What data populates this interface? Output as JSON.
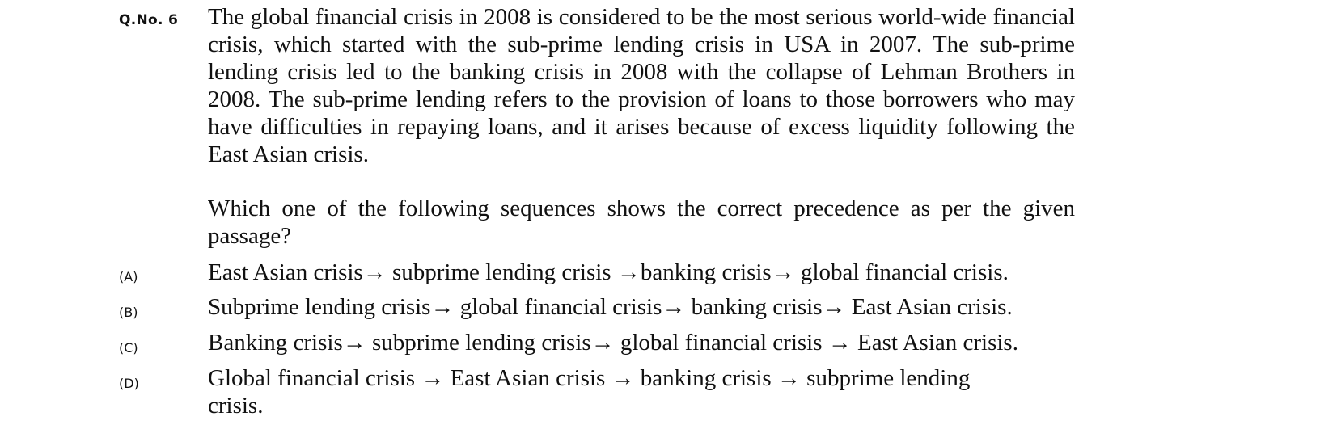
{
  "question": {
    "number_label": "Q.No. 6",
    "passage": "The global financial crisis in 2008 is considered to be the most serious world-wide financial crisis, which started with the sub-prime lending crisis in USA in 2007. The sub-prime lending crisis led to the banking crisis in 2008 with the collapse of Lehman Brothers in 2008. The sub-prime lending refers to the provision of loans to those borrowers who may have difficulties in repaying loans, and it arises because of excess liquidity following the East Asian crisis.",
    "prompt": "Which one of the following sequences shows the correct precedence as per the given passage?"
  },
  "options": [
    {
      "label": "(A)",
      "text": "East Asian crisis→ subprime lending crisis →banking crisis→ global financial crisis."
    },
    {
      "label": "(B)",
      "text": "Subprime lending crisis→ global financial crisis→ banking crisis→ East Asian crisis."
    },
    {
      "label": "(C)",
      "text": "Banking crisis→ subprime lending crisis→ global financial crisis → East Asian crisis."
    },
    {
      "label": "(D)",
      "text": "Global financial crisis → East Asian crisis → banking crisis → subprime lending crisis."
    }
  ]
}
